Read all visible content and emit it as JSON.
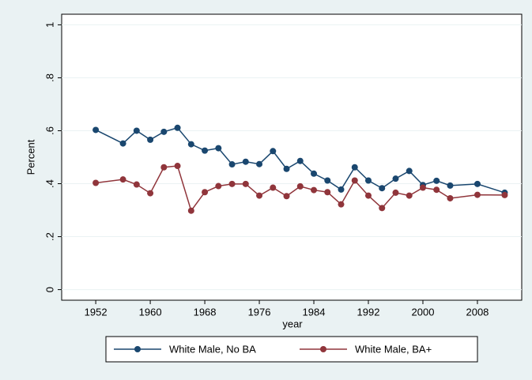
{
  "chart_data": {
    "type": "line",
    "x_label": "year",
    "y_label": "Percent",
    "x": [
      1952,
      1956,
      1958,
      1960,
      1962,
      1964,
      1966,
      1968,
      1970,
      1972,
      1974,
      1976,
      1978,
      1980,
      1982,
      1984,
      1986,
      1988,
      1990,
      1992,
      1994,
      1996,
      1998,
      2000,
      2002,
      2004,
      2008,
      2012
    ],
    "series": [
      {
        "name": "White Male, No BA",
        "color": "#1a476f",
        "values": [
          0.603,
          0.552,
          0.6,
          0.566,
          0.596,
          0.611,
          0.549,
          0.525,
          0.534,
          0.473,
          0.483,
          0.474,
          0.523,
          0.456,
          0.486,
          0.438,
          0.412,
          0.378,
          0.462,
          0.412,
          0.383,
          0.419,
          0.448,
          0.395,
          0.411,
          0.393,
          0.399,
          0.366
        ]
      },
      {
        "name": "White Male, BA+",
        "color": "#90353b",
        "values": [
          0.403,
          0.416,
          0.397,
          0.364,
          0.462,
          0.467,
          0.298,
          0.368,
          0.391,
          0.399,
          0.399,
          0.355,
          0.385,
          0.353,
          0.39,
          0.376,
          0.368,
          0.322,
          0.412,
          0.355,
          0.308,
          0.366,
          0.355,
          0.385,
          0.377,
          0.345,
          0.358,
          0.357
        ]
      }
    ],
    "xlim": [
      1947,
      2014.5
    ],
    "xticks": [
      1952,
      1960,
      1968,
      1976,
      1984,
      1992,
      2000,
      2008
    ],
    "ylim": [
      -0.04,
      1.04
    ],
    "yticks": [
      0,
      {
        "value": 0.2,
        "label": ".2"
      },
      {
        "value": 0.4,
        "label": ".4"
      },
      {
        "value": 0.6,
        "label": ".6"
      },
      {
        "value": 0.8,
        "label": ".8"
      },
      1
    ],
    "grid": true,
    "legend": "bottom"
  }
}
